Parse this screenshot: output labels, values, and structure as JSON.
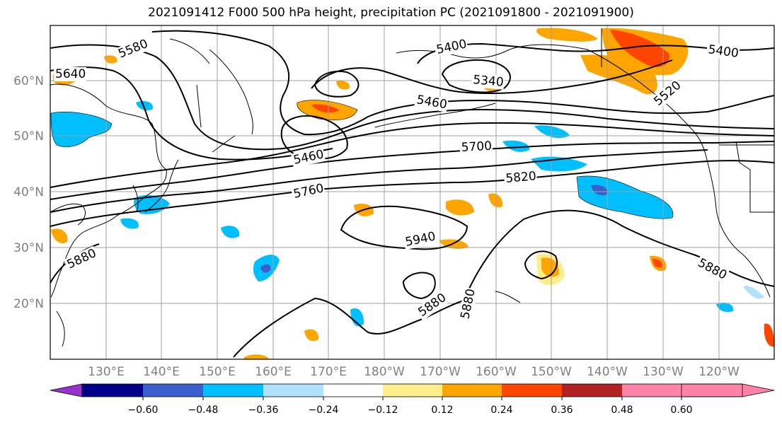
{
  "title": "2021091412 F000 500 hPa height, precipitation PC (2021091800 - 2021091900)",
  "map": {
    "lon_range": [
      120,
      250
    ],
    "lat_range": [
      10,
      70
    ],
    "lat_labels": [
      "20°N",
      "30°N",
      "40°N",
      "50°N",
      "60°N"
    ],
    "lon_labels": [
      "130°E",
      "140°E",
      "150°E",
      "160°E",
      "170°E",
      "180°W",
      "170°W",
      "160°W",
      "150°W",
      "140°W",
      "130°W",
      "120°W"
    ],
    "gridlines": true,
    "contour_field": "500 hPa height",
    "contour_labels": [
      "5580",
      "5640",
      "5400",
      "5340",
      "5400",
      "5520",
      "5460",
      "5460",
      "5700",
      "5820",
      "5760",
      "5940",
      "5880",
      "5880",
      "5880",
      "5880"
    ],
    "shaded_field": "precipitation PC"
  },
  "colorbar": {
    "orientation": "horizontal",
    "extend": "both",
    "tick_labels": [
      "−0.60",
      "−0.48",
      "−0.36",
      "−0.24",
      "−0.12",
      "0.12",
      "0.24",
      "0.36",
      "0.48",
      "0.60"
    ],
    "colors": [
      "#9932cc",
      "#00008b",
      "#3a5fcd",
      "#00bfff",
      "#b0e2ff",
      "#ffffff",
      "#ffec8b",
      "#ffa500",
      "#ff4500",
      "#b22222",
      "#ff82ab"
    ]
  }
}
